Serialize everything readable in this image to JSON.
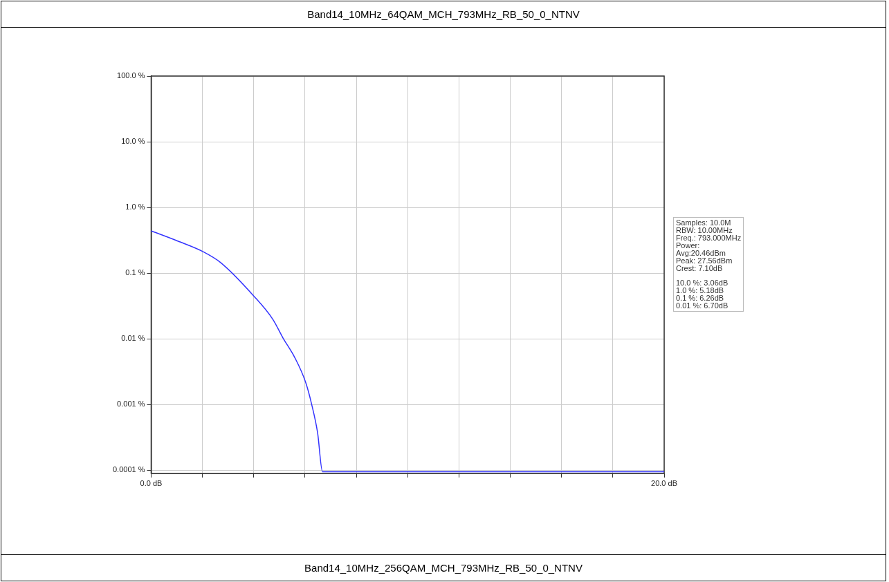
{
  "chart_data": {
    "type": "line",
    "title": "Band14_10MHz_64QAM_MCH_793MHz_RB_50_0_NTNV",
    "x": [
      0,
      1.02,
      2.05,
      2.7,
      4.0,
      4.75,
      5.13,
      5.6,
      6.02,
      6.26,
      6.49,
      6.68,
      20
    ],
    "series": [
      {
        "color": "#3333ff",
        "values": [
          0.44,
          0.31,
          0.21,
          0.146,
          0.045,
          0.0197,
          0.0105,
          0.0052,
          0.0022,
          0.001,
          0.00037,
          9.5e-05,
          9.5e-05
        ]
      }
    ],
    "xlim": [
      0,
      20
    ],
    "xticks": [
      {
        "value": 0,
        "label": "0.0 dB"
      },
      {
        "value": 2,
        "label": null
      },
      {
        "value": 4,
        "label": null
      },
      {
        "value": 6,
        "label": null
      },
      {
        "value": 8,
        "label": null
      },
      {
        "value": 10,
        "label": null
      },
      {
        "value": 12,
        "label": null
      },
      {
        "value": 14,
        "label": null
      },
      {
        "value": 16,
        "label": null
      },
      {
        "value": 18,
        "label": null
      },
      {
        "value": 20,
        "label": "20.0 dB"
      }
    ],
    "ylim": [
      9e-05,
      100
    ],
    "yticks": [
      {
        "value": 0.0001,
        "label": "0.0001 %"
      },
      {
        "value": 0.001,
        "label": "0.001 %"
      },
      {
        "value": 0.01,
        "label": "0.01 %"
      },
      {
        "value": 0.1,
        "label": "0.1 %"
      },
      {
        "value": 1,
        "label": "1.0 %"
      },
      {
        "value": 10,
        "label": "10.0 %"
      },
      {
        "value": 100,
        "label": "100.0 %"
      }
    ],
    "log": "y",
    "grid": true,
    "legend": false,
    "marker": "none",
    "line_style": "solid",
    "annotations": [
      "Samples: 10.0M",
      "RBW: 10.00MHz",
      "Freq.: 793.000MHz",
      "Power:",
      "Avg:20.46dBm",
      "Peak: 27.56dBm",
      "Crest: 7.10dB",
      "10.0 %: 3.06dB",
      "1.0 %: 5.18dB",
      "0.1 %: 6.26dB",
      "0.01 %: 6.70dB",
      "Band14_10MHz_256QAM_MCH_793MHz_RB_50_0_NTNV"
    ]
  }
}
